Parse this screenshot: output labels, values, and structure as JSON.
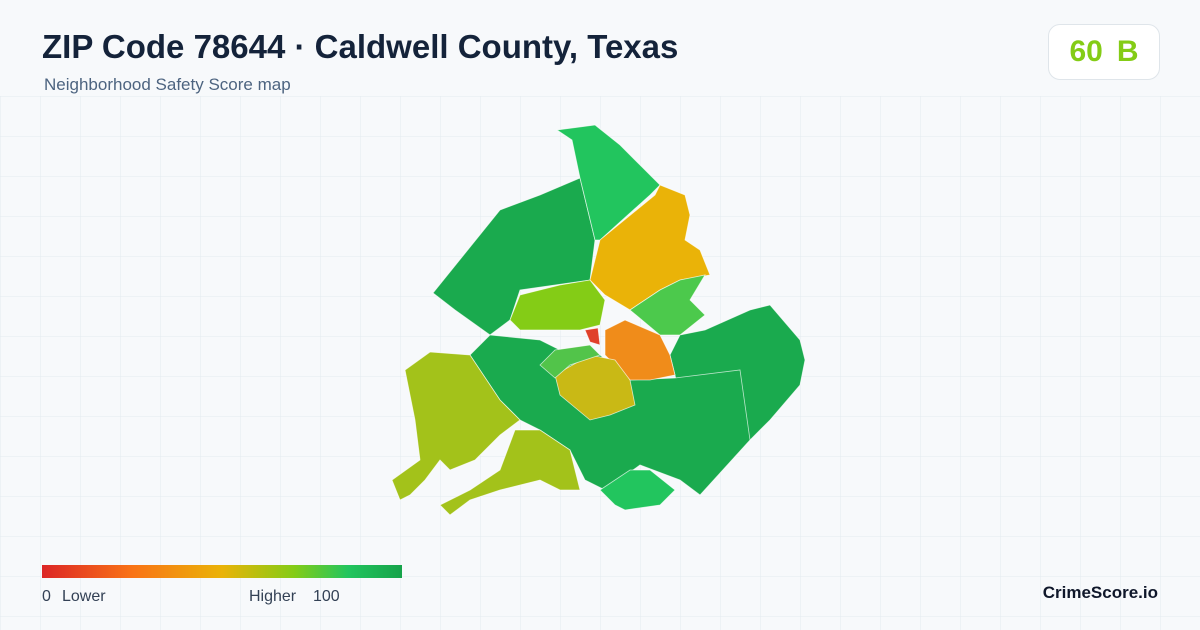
{
  "header": {
    "title": "ZIP Code 78644 · Caldwell County, Texas",
    "subtitle": "Neighborhood Safety Score map"
  },
  "score": {
    "value": 60,
    "grade": "B"
  },
  "legend": {
    "min": 0,
    "min_label": "Lower",
    "max_label": "Higher",
    "max": 100
  },
  "brand": "CrimeScore.io"
}
